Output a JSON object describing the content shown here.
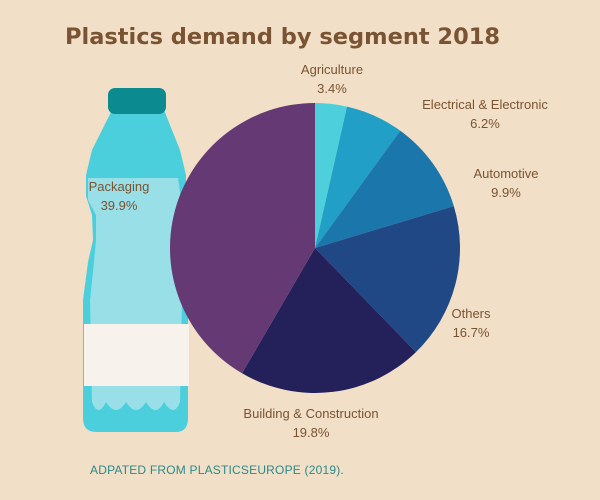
{
  "colors": {
    "background": "#f1e0c7",
    "title": "#7a5332",
    "label": "#7a5332",
    "source": "#2a8a8a",
    "bottle_body": "#4ccfdc",
    "bottle_inner": "#98dfe8",
    "bottle_cap": "#0b8a8f",
    "bottle_label": "#f7f3ec"
  },
  "icons": [
    "water-bottle-icon"
  ],
  "chart_data": {
    "type": "pie",
    "title": "Plastics demand by segment 2018",
    "start_angle_deg": 0,
    "direction": "clockwise",
    "unit": "%",
    "slices": [
      {
        "name": "Agriculture",
        "value": 3.4,
        "label": "3.4%",
        "color": "#4dd0dc"
      },
      {
        "name": "Electrical & Electronic",
        "value": 6.2,
        "label": "6.2%",
        "color": "#219fc6"
      },
      {
        "name": "Automotive",
        "value": 9.9,
        "label": "9.9%",
        "color": "#1a76ab"
      },
      {
        "name": "Others",
        "value": 16.7,
        "label": "16.7%",
        "color": "#1f4885"
      },
      {
        "name": "Building & Construction",
        "value": 19.8,
        "label": "19.8%",
        "color": "#23205a"
      },
      {
        "name": "Packaging",
        "value": 39.9,
        "label": "39.9%",
        "color": "#653a74"
      }
    ],
    "source": "ADPATED FROM PLASTICSEUROPE (2019)."
  }
}
